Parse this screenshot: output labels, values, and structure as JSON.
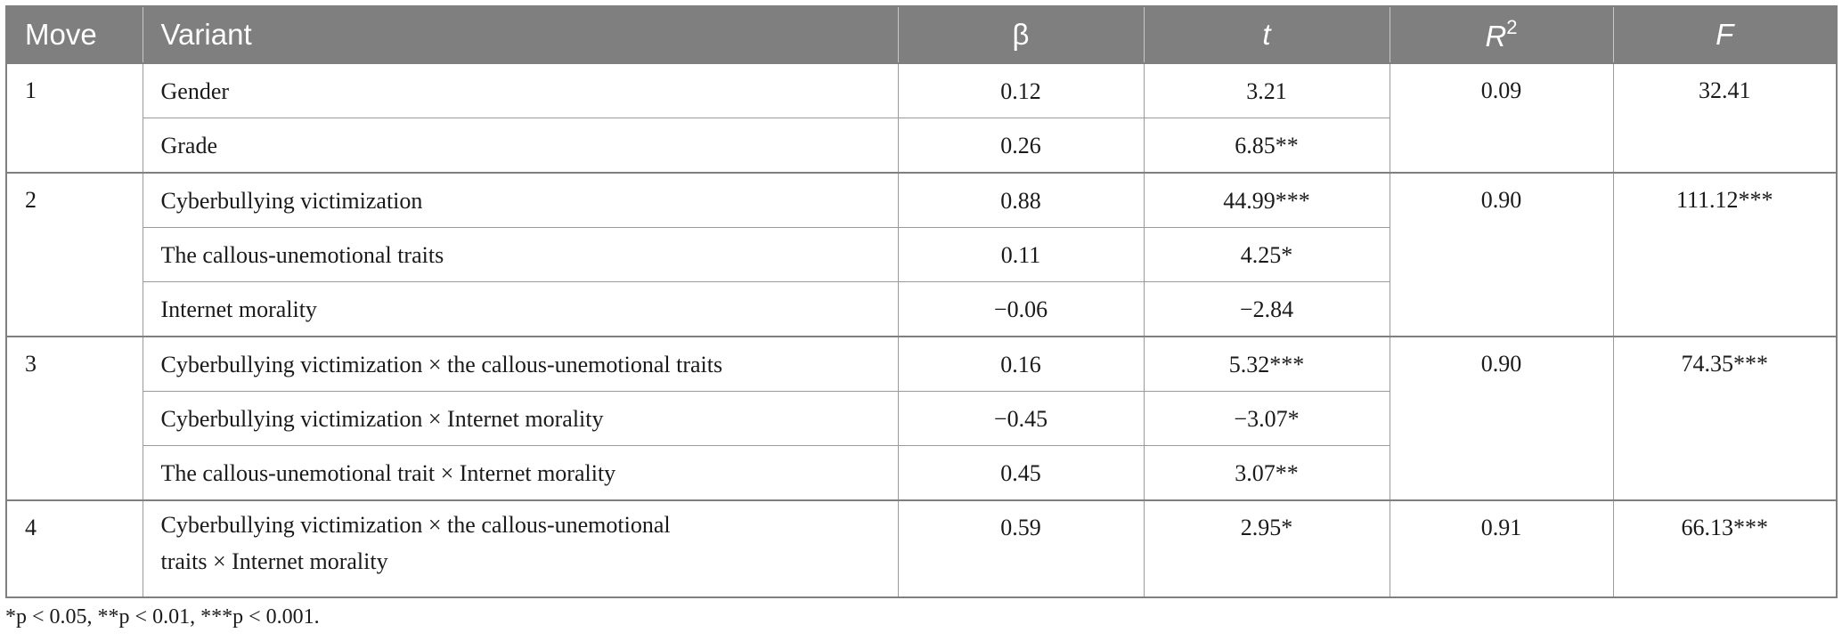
{
  "table": {
    "headers": {
      "move": "Move",
      "variant": "Variant",
      "beta": "β",
      "t": "t",
      "r2_base": "R",
      "r2_sup": "2",
      "f": "F"
    },
    "groups": [
      {
        "move": "1",
        "r2": "0.09",
        "f": "32.41",
        "rows": [
          {
            "variant": "Gender",
            "beta": "0.12",
            "t": "3.21"
          },
          {
            "variant": "Grade",
            "beta": "0.26",
            "t": "6.85**"
          }
        ]
      },
      {
        "move": "2",
        "r2": "0.90",
        "f": "111.12***",
        "rows": [
          {
            "variant": "Cyberbullying victimization",
            "beta": "0.88",
            "t": "44.99***"
          },
          {
            "variant": "The callous-unemotional traits",
            "beta": "0.11",
            "t": "4.25*"
          },
          {
            "variant": "Internet morality",
            "beta": "−0.06",
            "t": "−2.84"
          }
        ]
      },
      {
        "move": "3",
        "r2": "0.90",
        "f": "74.35***",
        "rows": [
          {
            "variant": "Cyberbullying victimization × the callous-unemotional traits",
            "beta": "0.16",
            "t": "5.32***"
          },
          {
            "variant": "Cyberbullying victimization × Internet morality",
            "beta": "−0.45",
            "t": "−3.07*"
          },
          {
            "variant": "The callous-unemotional trait × Internet morality",
            "beta": "0.45",
            "t": "3.07**"
          }
        ]
      },
      {
        "move": "4",
        "r2": "0.91",
        "f": "66.13***",
        "rows": [
          {
            "variant_line1": "Cyberbullying victimization × the callous-unemotional",
            "variant_line2": "traits × Internet morality",
            "beta": "0.59",
            "t": "2.95*"
          }
        ]
      }
    ]
  },
  "footnote": "*p < 0.05, **p < 0.01, ***p < 0.001."
}
